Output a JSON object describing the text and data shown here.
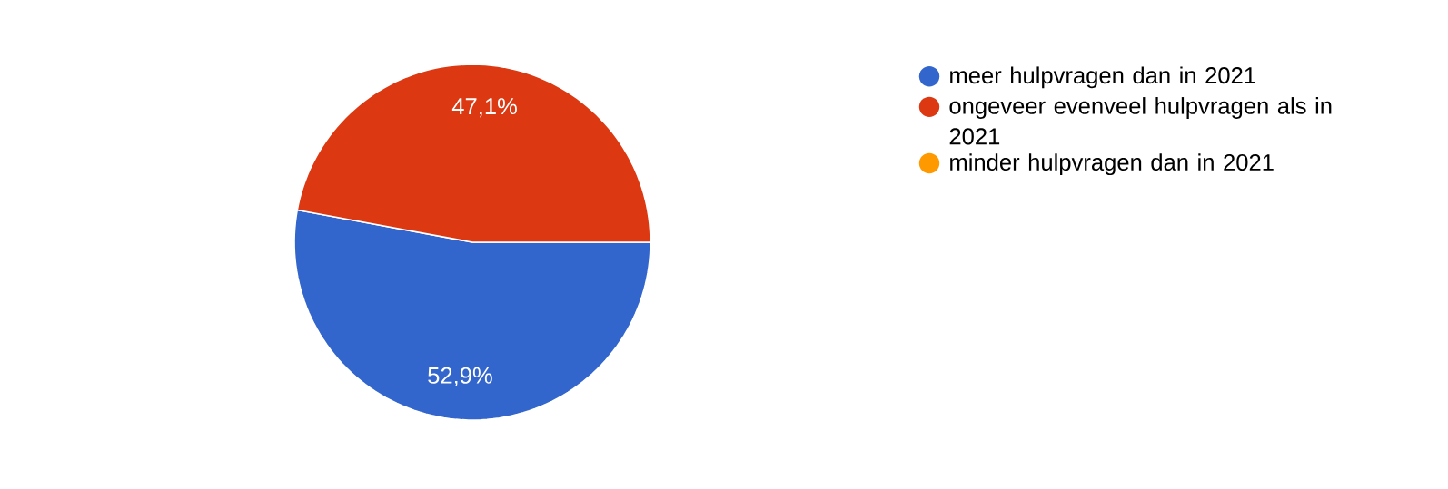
{
  "chart_data": {
    "type": "pie",
    "categories": [
      "meer hulpvragen dan in 2021",
      "ongeveer evenveel hulpvragen als in 2021",
      "minder hulpvragen dan in 2021"
    ],
    "values": [
      52.9,
      47.1,
      0
    ],
    "colors": [
      "#3366cc",
      "#dc3912",
      "#ff9900"
    ],
    "value_labels": [
      "52,9%",
      "47,1%",
      null
    ],
    "legend": "right"
  }
}
